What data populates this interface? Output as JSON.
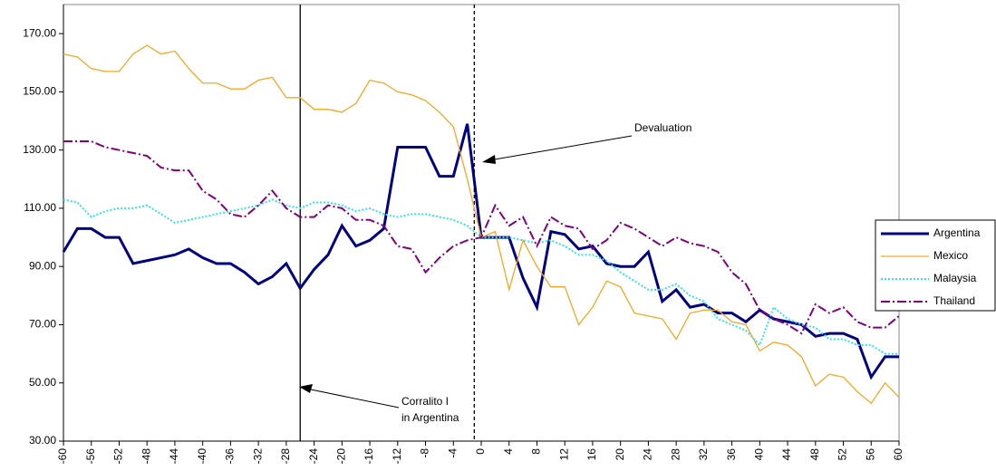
{
  "chart_data": {
    "type": "line",
    "x": [
      -60,
      -58,
      -56,
      -54,
      -52,
      -50,
      -48,
      -46,
      -44,
      -42,
      -40,
      -38,
      -36,
      -34,
      -32,
      -30,
      -28,
      -26,
      -24,
      -22,
      -20,
      -18,
      -16,
      -14,
      -12,
      -10,
      -8,
      -6,
      -4,
      -2,
      0,
      2,
      4,
      6,
      8,
      10,
      12,
      14,
      16,
      18,
      20,
      22,
      24,
      26,
      28,
      30,
      32,
      34,
      36,
      38,
      40,
      42,
      44,
      46,
      48,
      50,
      52,
      54,
      56,
      58,
      60
    ],
    "series": [
      {
        "name": "Argentina",
        "color": "#000080",
        "style": "solid",
        "width": 3,
        "values": [
          95,
          103,
          103,
          100,
          100,
          91,
          92,
          93,
          94,
          96,
          93,
          91,
          91,
          88,
          84,
          86.5,
          91,
          82.5,
          89,
          94,
          104,
          97,
          99,
          103,
          131,
          131,
          131,
          121,
          121,
          139,
          100,
          100,
          100,
          86,
          76,
          102,
          101,
          96,
          97,
          91,
          90,
          90,
          95,
          78,
          82,
          76,
          77,
          74,
          74,
          71,
          75,
          72,
          71,
          70,
          66,
          67,
          67,
          65,
          52,
          59,
          59
        ]
      },
      {
        "name": "Mexico",
        "color": "#f5a623",
        "style": "solid",
        "width": 1.3,
        "values": [
          163,
          162,
          158,
          157,
          157,
          163,
          166,
          163,
          164,
          158,
          153,
          153,
          151,
          151,
          154,
          155,
          148,
          148,
          144,
          144,
          143,
          146,
          154,
          153,
          150,
          149,
          147,
          143,
          138,
          120,
          100,
          102,
          82,
          99,
          90,
          83,
          83,
          70,
          76,
          85,
          83,
          74,
          73,
          72,
          65,
          74,
          75,
          75,
          71,
          70,
          61,
          64,
          63,
          59,
          49,
          53,
          52,
          47,
          43,
          50,
          45
        ]
      },
      {
        "name": "Malaysia",
        "color": "#33e0f0",
        "style": "dotted",
        "width": 2,
        "values": [
          113,
          112,
          107,
          109,
          110,
          110,
          111,
          108,
          105,
          106,
          107,
          108,
          109,
          110,
          111,
          113,
          111,
          110,
          112,
          112,
          111,
          109,
          110,
          108,
          107,
          108,
          108,
          107,
          106,
          104,
          100,
          100,
          100,
          99,
          98,
          99,
          97,
          94,
          94,
          92,
          88,
          85,
          82,
          82,
          84,
          80,
          78,
          72,
          70,
          68,
          63,
          76,
          72,
          70,
          69,
          65,
          65,
          63,
          63,
          60,
          60
        ]
      },
      {
        "name": "Thailand",
        "color": "#800080",
        "style": "dashdot",
        "width": 2,
        "values": [
          133,
          133,
          133,
          131,
          130,
          129,
          128,
          124,
          123,
          123,
          116,
          113,
          108,
          107,
          111,
          116,
          110,
          107,
          107,
          111,
          110,
          106,
          106,
          104,
          97,
          96,
          88,
          93,
          97,
          99,
          100,
          111,
          104,
          107,
          97,
          107,
          104,
          103,
          96,
          99,
          105,
          103,
          100,
          97,
          100,
          98,
          97,
          95,
          88,
          84,
          75,
          72,
          70,
          67,
          77,
          74,
          76,
          71,
          69,
          69,
          73
        ]
      }
    ],
    "xlim": [
      -60,
      60
    ],
    "xticks": [
      -60,
      -56,
      -52,
      -48,
      -44,
      -40,
      -36,
      -32,
      -28,
      -24,
      -20,
      -16,
      -12,
      -8,
      -4,
      0,
      4,
      8,
      12,
      16,
      20,
      24,
      28,
      32,
      36,
      40,
      44,
      48,
      52,
      56,
      60
    ],
    "ylim": [
      30,
      180
    ],
    "yticks": [
      {
        "value": 30,
        "label": "30.00"
      },
      {
        "value": 50,
        "label": "50.00"
      },
      {
        "value": 70,
        "label": "70.00"
      },
      {
        "value": 90,
        "label": "90.00"
      },
      {
        "value": 110,
        "label": "110.00"
      },
      {
        "value": 130,
        "label": "130.00"
      },
      {
        "value": 150,
        "label": "150.00"
      },
      {
        "value": 170,
        "label": "170.00"
      }
    ],
    "reference_lines": [
      {
        "x": -26,
        "style": "solid"
      },
      {
        "x": -1,
        "style": "dashed"
      }
    ],
    "annotations": [
      {
        "lines": [
          "Devaluation"
        ]
      },
      {
        "lines": [
          "Corralito I",
          "in Argentina"
        ]
      }
    ],
    "legend": "right"
  }
}
